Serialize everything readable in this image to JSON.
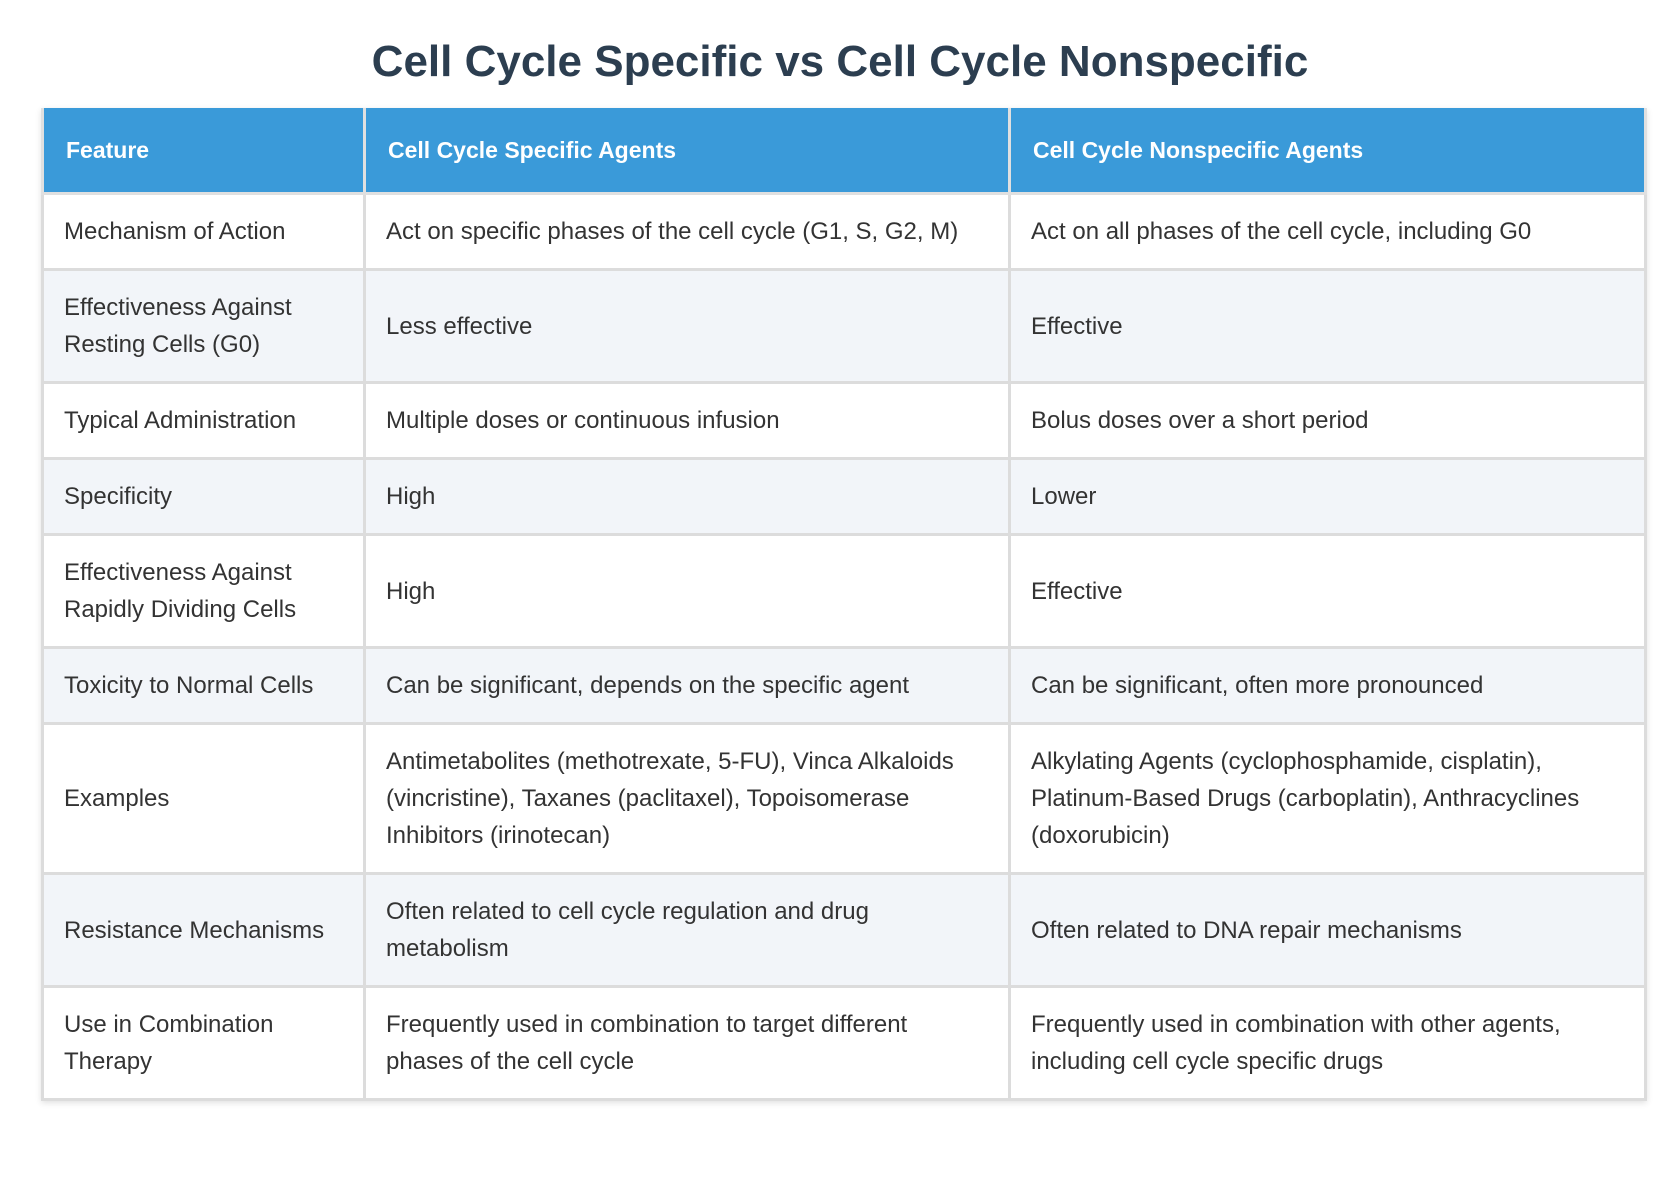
{
  "chart_data": {
    "type": "table",
    "title": "Cell Cycle Specific vs Cell Cycle Nonspecific",
    "columns": [
      "Feature",
      "Cell Cycle Specific Agents",
      "Cell Cycle Nonspecific Agents"
    ],
    "rows": [
      [
        "Mechanism of Action",
        "Act on specific phases of the cell cycle (G1, S, G2, M)",
        "Act on all phases of the cell cycle, including G0"
      ],
      [
        "Effectiveness Against Resting Cells (G0)",
        "Less effective",
        "Effective"
      ],
      [
        "Typical Administration",
        "Multiple doses or continuous infusion",
        "Bolus doses over a short period"
      ],
      [
        "Specificity",
        "High",
        "Lower"
      ],
      [
        "Effectiveness Against Rapidly Dividing Cells",
        "High",
        "Effective"
      ],
      [
        "Toxicity to Normal Cells",
        "Can be significant, depends on the specific agent",
        "Can be significant, often more pronounced"
      ],
      [
        "Examples",
        "Antimetabolites (methotrexate, 5-FU), Vinca Alkaloids (vincristine), Taxanes (paclitaxel), Topoisomerase Inhibitors (irinotecan)",
        "Alkylating Agents (cyclophosphamide, cisplatin), Platinum-Based Drugs (carboplatin), Anthracyclines (doxorubicin)"
      ],
      [
        "Resistance Mechanisms",
        "Often related to cell cycle regulation and drug metabolism",
        "Often related to DNA repair mechanisms"
      ],
      [
        "Use in Combination Therapy",
        "Frequently used in combination to target different phases of the cell cycle",
        "Frequently used in combination with other agents, including cell cycle specific drugs"
      ]
    ]
  },
  "colors": {
    "header_bg": "#3a9ad9",
    "title": "#2c3e50",
    "row_alt": "#f2f5f9"
  }
}
